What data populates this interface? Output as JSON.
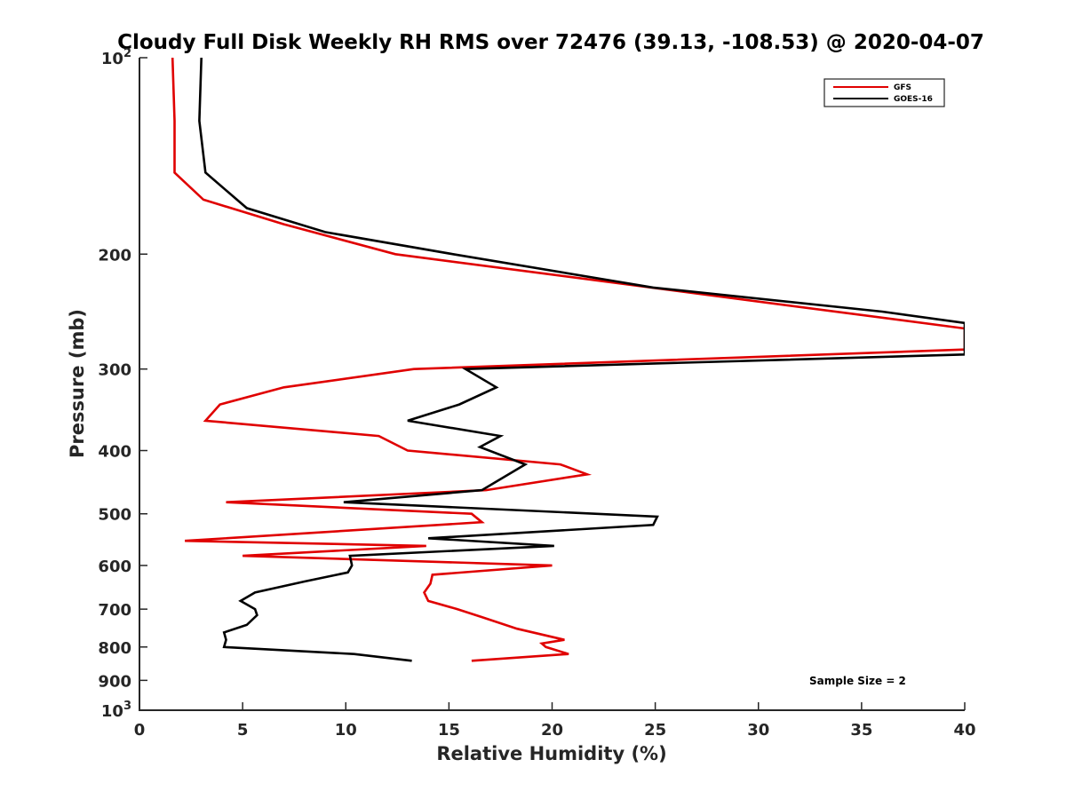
{
  "chart_data": {
    "type": "line",
    "title": "Cloudy Full Disk Weekly RH RMS over 72476 (39.13, -108.53) @ 2020-04-07",
    "xlabel": "Relative Humidity (%)",
    "ylabel": "Pressure (mb)",
    "xlim": [
      0,
      40
    ],
    "ylim": [
      100,
      1000
    ],
    "y_scale": "log",
    "y_reversed": true,
    "grid": false,
    "legend_position": "top-right",
    "x_ticks": [
      {
        "value": 0,
        "label": "0"
      },
      {
        "value": 5,
        "label": "5"
      },
      {
        "value": 10,
        "label": "10"
      },
      {
        "value": 15,
        "label": "15"
      },
      {
        "value": 20,
        "label": "20"
      },
      {
        "value": 25,
        "label": "25"
      },
      {
        "value": 30,
        "label": "30"
      },
      {
        "value": 35,
        "label": "35"
      },
      {
        "value": 40,
        "label": "40"
      }
    ],
    "y_ticks": [
      {
        "value": 100,
        "base": "10",
        "exp": "2"
      },
      {
        "value": 200,
        "label": "200"
      },
      {
        "value": 300,
        "label": "300"
      },
      {
        "value": 400,
        "label": "400"
      },
      {
        "value": 500,
        "label": "500"
      },
      {
        "value": 600,
        "label": "600"
      },
      {
        "value": 700,
        "label": "700"
      },
      {
        "value": 800,
        "label": "800"
      },
      {
        "value": 900,
        "label": "900"
      },
      {
        "value": 1000,
        "base": "10",
        "exp": "3"
      }
    ],
    "series": [
      {
        "name": "GFS",
        "color": "#e00000",
        "points": [
          [
            1.6,
            100
          ],
          [
            1.7,
            125
          ],
          [
            1.7,
            150
          ],
          [
            3.1,
            165
          ],
          [
            7.0,
            180
          ],
          [
            12.4,
            200
          ],
          [
            40.0,
            260
          ],
          [
            40.0,
            280
          ],
          [
            13.3,
            300
          ],
          [
            7.0,
            320
          ],
          [
            3.9,
            340
          ],
          [
            3.2,
            360
          ],
          [
            11.6,
            380
          ],
          [
            13.0,
            400
          ],
          [
            20.4,
            420
          ],
          [
            21.7,
            435
          ],
          [
            16.8,
            460
          ],
          [
            4.2,
            480
          ],
          [
            16.1,
            500
          ],
          [
            16.6,
            515
          ],
          [
            2.2,
            550
          ],
          [
            13.9,
            560
          ],
          [
            5.0,
            580
          ],
          [
            20.0,
            600
          ],
          [
            14.2,
            620
          ],
          [
            14.1,
            640
          ],
          [
            13.8,
            660
          ],
          [
            14.0,
            680
          ],
          [
            15.4,
            700
          ],
          [
            16.6,
            720
          ],
          [
            18.3,
            750
          ],
          [
            20.6,
            780
          ],
          [
            19.5,
            790
          ],
          [
            19.7,
            800
          ],
          [
            20.8,
            820
          ],
          [
            16.1,
            840
          ]
        ]
      },
      {
        "name": "GOES-16",
        "color": "#000000",
        "points": [
          [
            3.0,
            100
          ],
          [
            2.9,
            125
          ],
          [
            3.2,
            150
          ],
          [
            5.2,
            170
          ],
          [
            9.0,
            185
          ],
          [
            15.2,
            200
          ],
          [
            24.9,
            225
          ],
          [
            36.0,
            245
          ],
          [
            40.0,
            255
          ],
          [
            40.0,
            285
          ],
          [
            15.8,
            300
          ],
          [
            17.3,
            320
          ],
          [
            15.5,
            340
          ],
          [
            13.0,
            360
          ],
          [
            17.5,
            380
          ],
          [
            16.5,
            395
          ],
          [
            18.7,
            420
          ],
          [
            16.6,
            460
          ],
          [
            9.9,
            480
          ],
          [
            25.1,
            505
          ],
          [
            24.9,
            520
          ],
          [
            14.0,
            545
          ],
          [
            20.1,
            560
          ],
          [
            10.2,
            580
          ],
          [
            10.3,
            600
          ],
          [
            10.1,
            615
          ],
          [
            8.0,
            635
          ],
          [
            5.6,
            660
          ],
          [
            4.9,
            680
          ],
          [
            5.6,
            700
          ],
          [
            5.7,
            715
          ],
          [
            5.2,
            740
          ],
          [
            4.1,
            760
          ],
          [
            4.2,
            780
          ],
          [
            4.1,
            800
          ],
          [
            10.4,
            820
          ],
          [
            13.2,
            840
          ]
        ]
      }
    ],
    "annotation": "Sample Size = 2"
  }
}
